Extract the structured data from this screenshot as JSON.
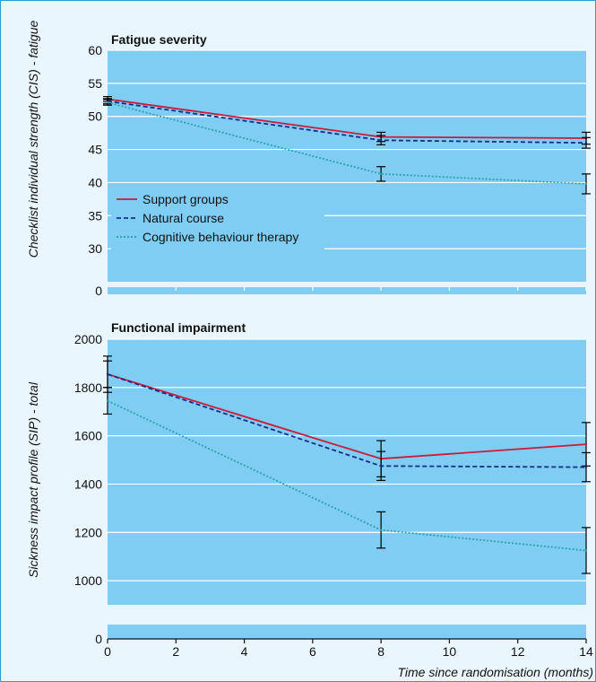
{
  "figure": {
    "xlabel": "Time since randomisation (months)",
    "x_ticks": [
      0,
      2,
      4,
      6,
      8,
      10,
      12,
      14
    ]
  },
  "chart_data": [
    {
      "type": "line",
      "title": "Fatigue severity",
      "ylabel": "Checklist individual strength (CIS) - fatigue",
      "xlabel": "Time since randomisation (months)",
      "xlim": [
        0,
        14
      ],
      "ylim": [
        25,
        60
      ],
      "y_ticks": [
        30,
        35,
        40,
        45,
        50,
        55,
        60
      ],
      "y_break_label": "0",
      "legend": "center-left",
      "colors": {
        "panel_bg": "#7fcdf2",
        "grid": "#ffffff"
      },
      "series": [
        {
          "name": "Support groups",
          "color": "#cc1a3a",
          "dash": "solid",
          "x": [
            0,
            8,
            14
          ],
          "y": [
            52.6,
            46.9,
            46.7
          ],
          "err": [
            0.4,
            0.7,
            0.9
          ]
        },
        {
          "name": "Natural course",
          "color": "#1a2b8c",
          "dash": "dashed",
          "x": [
            0,
            8,
            14
          ],
          "y": [
            52.3,
            46.4,
            46.0
          ],
          "err": [
            0.4,
            0.7,
            0.8
          ]
        },
        {
          "name": "Cognitive behaviour therapy",
          "color": "#2aa4a8",
          "dash": "dotted",
          "x": [
            0,
            8,
            14
          ],
          "y": [
            52.1,
            41.3,
            39.8
          ],
          "err": [
            0.4,
            1.1,
            1.5
          ]
        }
      ]
    },
    {
      "type": "line",
      "title": "Functional impairment",
      "ylabel": "Sickness impact profile (SIP) - total",
      "xlabel": "Time since randomisation (months)",
      "xlim": [
        0,
        14
      ],
      "ylim": [
        900,
        2000
      ],
      "y_ticks": [
        1000,
        1200,
        1400,
        1600,
        1800,
        2000
      ],
      "y_break_label": "0",
      "colors": {
        "panel_bg": "#7fcdf2",
        "grid": "#ffffff"
      },
      "series": [
        {
          "name": "Support groups",
          "color": "#cc1a3a",
          "dash": "solid",
          "x": [
            0,
            8,
            14
          ],
          "y": [
            1855,
            1505,
            1565
          ],
          "err": [
            75,
            75,
            90
          ]
        },
        {
          "name": "Natural course",
          "color": "#1a2b8c",
          "dash": "dashed",
          "x": [
            0,
            8,
            14
          ],
          "y": [
            1855,
            1475,
            1470
          ],
          "err": [
            55,
            60,
            60
          ]
        },
        {
          "name": "Cognitive behaviour therapy",
          "color": "#2aa4a8",
          "dash": "dotted",
          "x": [
            0,
            8,
            14
          ],
          "y": [
            1745,
            1210,
            1125
          ],
          "err": [
            55,
            75,
            95
          ]
        }
      ]
    }
  ]
}
